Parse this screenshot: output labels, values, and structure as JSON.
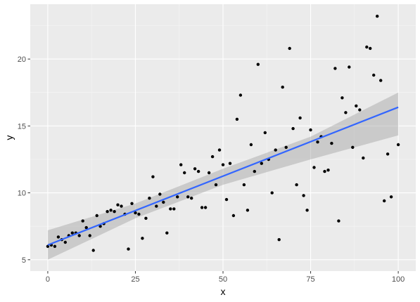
{
  "chart_data": {
    "type": "scatter",
    "title": "",
    "xlabel": "x",
    "ylabel": "y",
    "xlim": [
      -5,
      105
    ],
    "ylim": [
      4.15,
      24.1
    ],
    "x_ticks": [
      0,
      25,
      50,
      75,
      100
    ],
    "y_ticks": [
      5,
      10,
      15,
      20
    ],
    "x_minor": [
      12.5,
      37.5,
      62.5,
      87.5
    ],
    "y_minor": [
      7.5,
      12.5,
      17.5,
      22.5
    ],
    "grid": true,
    "legend": "none",
    "points": [
      [
        0,
        6.0
      ],
      [
        1,
        6.1
      ],
      [
        2,
        6.0
      ],
      [
        3,
        6.7
      ],
      [
        4,
        6.5
      ],
      [
        5,
        6.3
      ],
      [
        6,
        6.8
      ],
      [
        7,
        7.0
      ],
      [
        8,
        7.0
      ],
      [
        9,
        6.8
      ],
      [
        10,
        7.9
      ],
      [
        11,
        7.4
      ],
      [
        12,
        6.8
      ],
      [
        13,
        5.7
      ],
      [
        14,
        8.3
      ],
      [
        15,
        7.5
      ],
      [
        16,
        7.7
      ],
      [
        17,
        8.6
      ],
      [
        18,
        8.7
      ],
      [
        19,
        8.6
      ],
      [
        20,
        9.1
      ],
      [
        21,
        9.0
      ],
      [
        22,
        8.4
      ],
      [
        23,
        5.8
      ],
      [
        24,
        9.2
      ],
      [
        25,
        8.5
      ],
      [
        26,
        8.4
      ],
      [
        27,
        6.6
      ],
      [
        28,
        8.1
      ],
      [
        29,
        9.6
      ],
      [
        30,
        11.2
      ],
      [
        31,
        9.0
      ],
      [
        32,
        9.9
      ],
      [
        33,
        9.3
      ],
      [
        34,
        7.0
      ],
      [
        35,
        8.8
      ],
      [
        36,
        8.8
      ],
      [
        37,
        9.7
      ],
      [
        38,
        12.1
      ],
      [
        39,
        11.5
      ],
      [
        40,
        9.7
      ],
      [
        41,
        9.6
      ],
      [
        42,
        11.8
      ],
      [
        43,
        11.6
      ],
      [
        44,
        8.9
      ],
      [
        45,
        8.9
      ],
      [
        46,
        11.5
      ],
      [
        47,
        12.7
      ],
      [
        48,
        10.6
      ],
      [
        49,
        13.2
      ],
      [
        50,
        12.1
      ],
      [
        51,
        9.5
      ],
      [
        52,
        12.2
      ],
      [
        53,
        8.3
      ],
      [
        54,
        15.5
      ],
      [
        55,
        17.3
      ],
      [
        56,
        10.6
      ],
      [
        57,
        8.7
      ],
      [
        58,
        13.6
      ],
      [
        59,
        11.6
      ],
      [
        60,
        19.6
      ],
      [
        61,
        12.2
      ],
      [
        62,
        14.5
      ],
      [
        63,
        12.5
      ],
      [
        64,
        10.0
      ],
      [
        65,
        13.2
      ],
      [
        66,
        6.5
      ],
      [
        67,
        17.9
      ],
      [
        68,
        13.4
      ],
      [
        69,
        20.8
      ],
      [
        70,
        14.8
      ],
      [
        71,
        10.6
      ],
      [
        72,
        15.6
      ],
      [
        73,
        9.8
      ],
      [
        74,
        8.7
      ],
      [
        75,
        14.7
      ],
      [
        76,
        11.9
      ],
      [
        77,
        13.8
      ],
      [
        78,
        14.2
      ],
      [
        79,
        11.6
      ],
      [
        80,
        11.7
      ],
      [
        81,
        13.7
      ],
      [
        82,
        19.3
      ],
      [
        83,
        7.9
      ],
      [
        84,
        17.1
      ],
      [
        85,
        16.0
      ],
      [
        86,
        19.4
      ],
      [
        87,
        13.4
      ],
      [
        88,
        16.5
      ],
      [
        89,
        16.2
      ],
      [
        90,
        12.6
      ],
      [
        91,
        20.9
      ],
      [
        92,
        20.8
      ],
      [
        93,
        18.8
      ],
      [
        94,
        23.2
      ],
      [
        95,
        18.4
      ],
      [
        96,
        9.4
      ],
      [
        97,
        12.9
      ],
      [
        98,
        9.7
      ],
      [
        100,
        13.6
      ]
    ],
    "smooth": {
      "method": "linear",
      "intercept": 6.1,
      "slope": 0.103,
      "band": [
        [
          0,
          5.0,
          7.2
        ],
        [
          25,
          8.1,
          9.2
        ],
        [
          50,
          10.6,
          11.8
        ],
        [
          75,
          12.5,
          14.2
        ],
        [
          100,
          14.3,
          17.5
        ]
      ]
    },
    "colors": {
      "panel": "#ebebeb",
      "grid_major": "#ffffff",
      "point": "#000000",
      "line": "#3366ff",
      "band": "#999999"
    }
  }
}
